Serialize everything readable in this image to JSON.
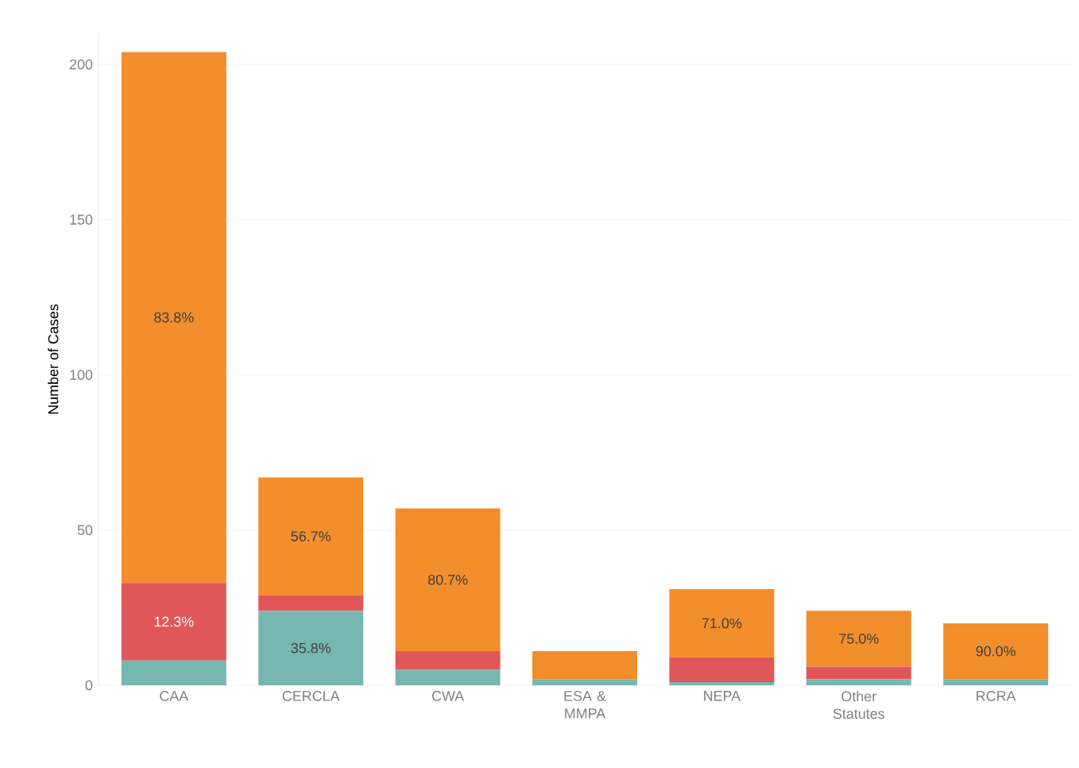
{
  "chart_data": {
    "type": "bar",
    "stacked": true,
    "ylabel": "Number of Cases",
    "categories": [
      "CAA",
      "CERCLA",
      "CWA",
      "ESA & MMPA",
      "NEPA",
      "Other Statutes",
      "RCRA"
    ],
    "series": [
      {
        "color": "#76b7b2",
        "values": [
          8,
          24,
          5,
          2,
          1,
          2,
          2
        ]
      },
      {
        "color": "#e15759",
        "values": [
          25,
          5,
          6,
          0,
          8,
          4,
          0
        ]
      },
      {
        "color": "#f28e2b",
        "values": [
          171,
          38,
          46,
          9,
          22,
          18,
          18
        ]
      }
    ],
    "annotations": [
      "12.3%",
      "83.8%",
      "35.8%",
      "56.7%",
      "80.7%",
      "71.0%",
      "75.0%",
      "90.0%"
    ],
    "ylim": [
      0,
      210
    ],
    "yticks": [
      0,
      50,
      100,
      150,
      200
    ],
    "grid": "y"
  }
}
